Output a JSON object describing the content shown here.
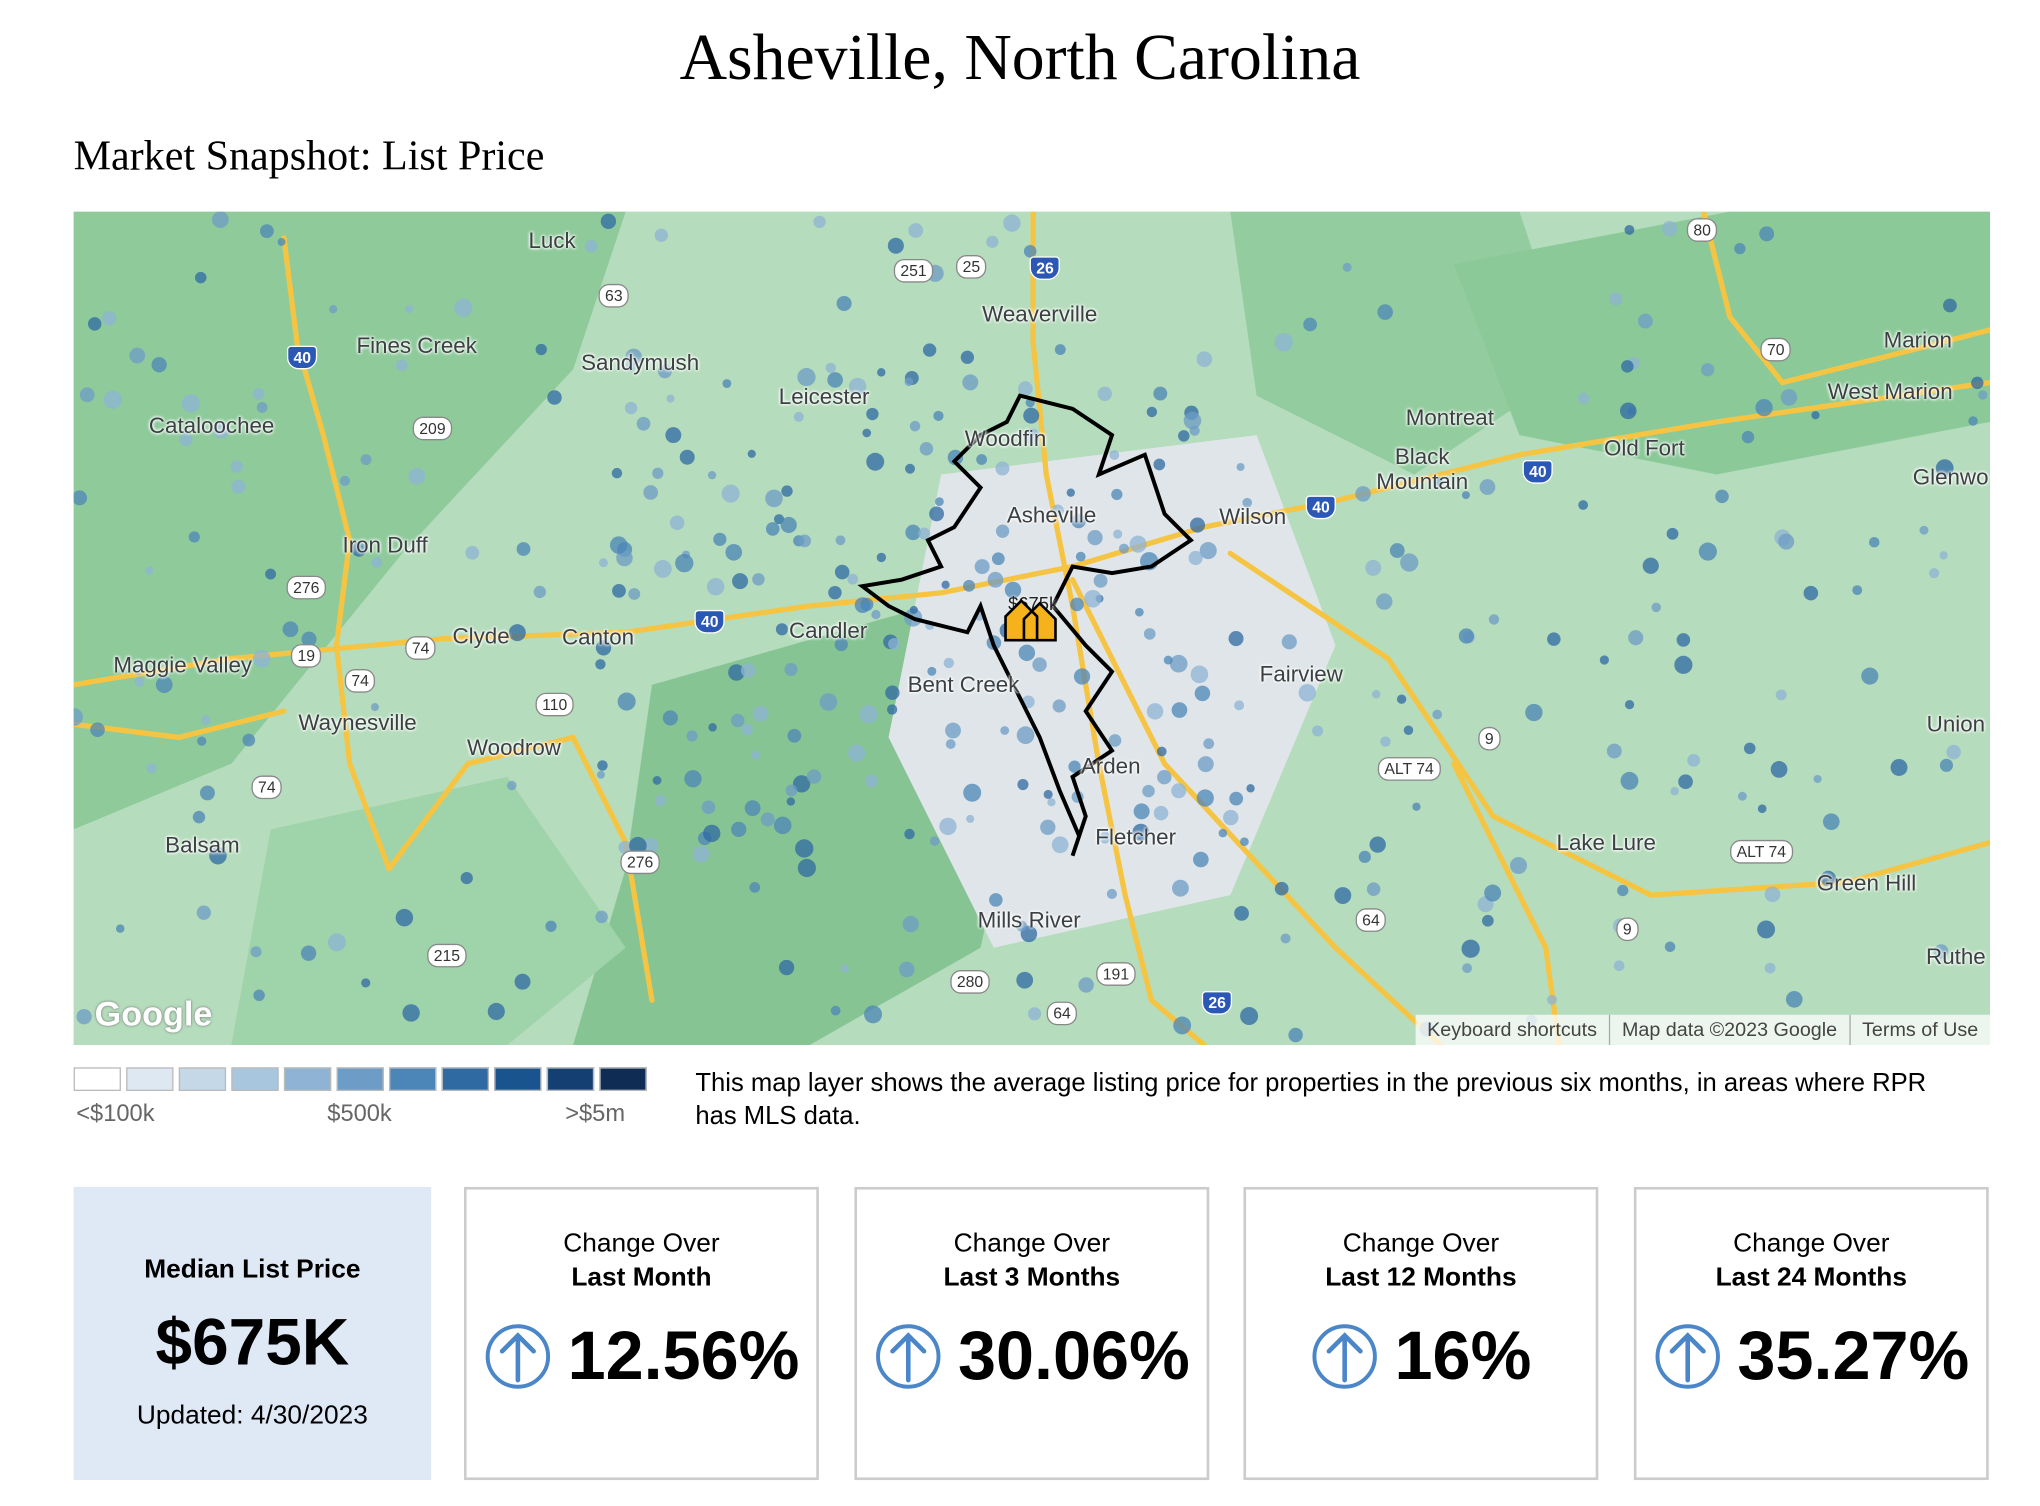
{
  "header": {
    "title": "Asheville, North Carolina",
    "subtitle": "Market Snapshot: List Price"
  },
  "map": {
    "places": [
      "Luck",
      "Fines Creek",
      "Sandymush",
      "Leicester",
      "Weaverville",
      "Cataloochee",
      "Woodfin",
      "Asheville",
      "Montreat",
      "Black Mountain",
      "Old Fort",
      "Marion",
      "West Marion",
      "Glenwo",
      "Iron Duff",
      "Wilson",
      "Candler",
      "Clyde",
      "Canton",
      "Maggie Valley",
      "Bent Creek",
      "Fairview",
      "Waynesville",
      "Woodrow",
      "Union",
      "Arden",
      "Balsam",
      "Fletcher",
      "Lake Lure",
      "Green Hill",
      "Mills River",
      "Ruthe"
    ],
    "routes": [
      "80",
      "251",
      "25",
      "26",
      "63",
      "40",
      "209",
      "70",
      "40",
      "40",
      "276",
      "40",
      "19",
      "74",
      "74",
      "110",
      "ALT 74",
      "9",
      "74",
      "276",
      "ALT 74",
      "64",
      "9",
      "215",
      "280",
      "191",
      "64",
      "26"
    ],
    "marker_label": "$675k",
    "logo": "Google",
    "attribution": [
      "Keyboard shortcuts",
      "Map data ©2023 Google",
      "Terms of Use"
    ]
  },
  "legend": {
    "colors": [
      "#ffffff",
      "#dde8f2",
      "#c5d8e8",
      "#a9c6df",
      "#8eb3d4",
      "#6d9cc6",
      "#4c85b7",
      "#2f6aa3",
      "#1a548e",
      "#133f72",
      "#0f2c54"
    ],
    "labels": [
      "<$100k",
      "$500k",
      ">$5m"
    ],
    "description": "This map layer shows the average listing price for properties in the previous six months, in areas where RPR has MLS data."
  },
  "summary": {
    "label": "Median List Price",
    "value": "$675K",
    "updated": "Updated: 4/30/2023"
  },
  "changes": [
    {
      "line1": "Change Over",
      "line2": "Last Month",
      "value": "12.56%"
    },
    {
      "line1": "Change Over",
      "line2": "Last 3 Months",
      "value": "30.06%"
    },
    {
      "line1": "Change Over",
      "line2": "Last 12 Months",
      "value": "16%"
    },
    {
      "line1": "Change Over",
      "line2": "Last 24 Months",
      "value": "35.27%"
    }
  ]
}
